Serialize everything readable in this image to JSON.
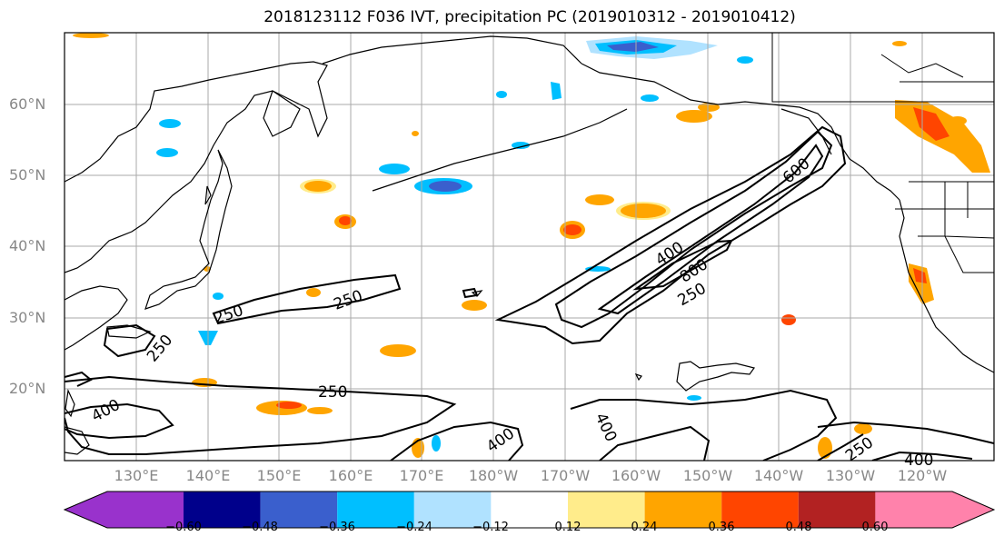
{
  "title": "2018123112 F036 IVT, precipitation PC (2019010312 - 2019010412)",
  "y_ticks": [
    "60°N",
    "50°N",
    "40°N",
    "30°N",
    "20°N"
  ],
  "x_ticks": [
    "130°E",
    "140°E",
    "150°E",
    "160°E",
    "170°E",
    "180°W",
    "170°W",
    "160°W",
    "150°W",
    "140°W",
    "130°W",
    "120°W"
  ],
  "contour_labels": [
    "600",
    "400",
    "800",
    "250",
    "250",
    "250",
    "250",
    "250",
    "400",
    "400",
    "400",
    "250",
    "400"
  ],
  "colorbar": {
    "ticks": [
      "−0.60",
      "−0.48",
      "−0.36",
      "−0.24",
      "−0.12",
      "0.12",
      "0.24",
      "0.36",
      "0.48",
      "0.60"
    ],
    "colors": [
      "#9932CC",
      "#00008B",
      "#3A5FCD",
      "#00BFFF",
      "#B0E2FF",
      "#FFFFFF",
      "#FFEC8B",
      "#FFA500",
      "#FF4500",
      "#B22222",
      "#FF82AB"
    ]
  }
}
